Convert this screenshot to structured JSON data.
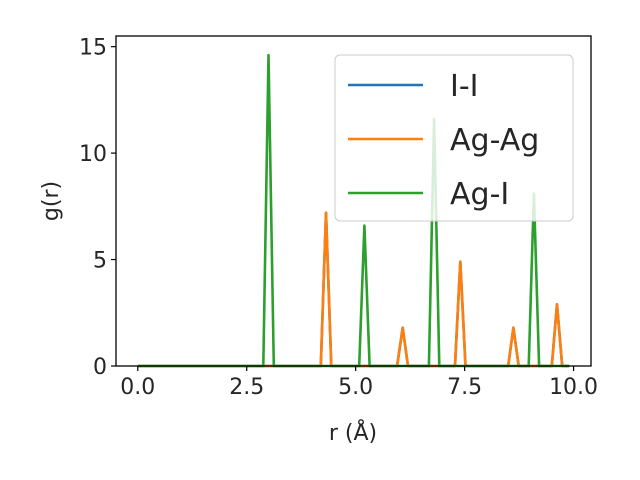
{
  "chart_data": {
    "type": "line",
    "xlabel": "r (Å)",
    "ylabel": "g(r)",
    "xlim": [
      -0.5,
      10.4
    ],
    "ylim": [
      0,
      15.5
    ],
    "xticks": [
      0.0,
      2.5,
      5.0,
      7.5,
      10.0
    ],
    "xtick_labels": [
      "0.0",
      "2.5",
      "5.0",
      "7.5",
      "10.0"
    ],
    "yticks": [
      0,
      5,
      10,
      15
    ],
    "ytick_labels": [
      "0",
      "5",
      "10",
      "15"
    ],
    "grid": false,
    "legend_position": "top-right",
    "series": [
      {
        "name": "I-I",
        "color": "#1f77b4",
        "x": [
          0.0,
          4.2,
          4.32,
          4.44,
          5.95,
          6.08,
          6.2,
          7.28,
          7.4,
          7.52,
          8.5,
          8.62,
          8.74,
          9.5,
          9.62,
          9.74,
          9.9
        ],
        "y": [
          0,
          0,
          7.2,
          0,
          0,
          1.8,
          0,
          0,
          4.9,
          0,
          0,
          1.8,
          0,
          0,
          2.9,
          0,
          0
        ]
      },
      {
        "name": "Ag-Ag",
        "color": "#ff7f0e",
        "x": [
          0.0,
          4.2,
          4.32,
          4.44,
          5.95,
          6.08,
          6.2,
          7.28,
          7.4,
          7.52,
          8.5,
          8.62,
          8.74,
          9.5,
          9.62,
          9.74,
          9.9
        ],
        "y": [
          0,
          0,
          7.2,
          0,
          0,
          1.8,
          0,
          0,
          4.9,
          0,
          0,
          1.8,
          0,
          0,
          2.9,
          0,
          0
        ]
      },
      {
        "name": "Ag-I",
        "color": "#2ca02c",
        "x": [
          0.0,
          2.88,
          3.0,
          3.12,
          5.08,
          5.2,
          5.32,
          6.68,
          6.8,
          6.92,
          8.97,
          9.09,
          9.21,
          9.9
        ],
        "y": [
          0,
          0,
          14.6,
          0,
          0,
          6.6,
          0,
          0,
          11.6,
          0,
          0,
          8.1,
          0,
          0
        ]
      }
    ]
  }
}
